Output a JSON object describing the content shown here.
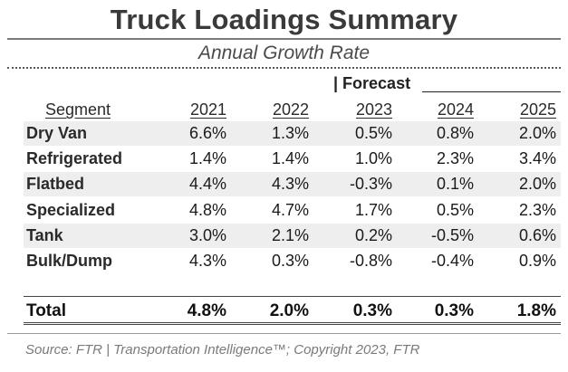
{
  "title": "Truck Loadings Summary",
  "subtitle": "Annual Growth Rate",
  "forecast_label": "| Forecast",
  "source": "Source: FTR | Transportation Intelligence™; Copyright 2023, FTR",
  "chart_data": {
    "type": "table",
    "title": "Truck Loadings Summary",
    "subtitle": "Annual Growth Rate",
    "columns": [
      "Segment",
      "2021",
      "2022",
      "2023",
      "2024",
      "2025"
    ],
    "rows": [
      {
        "segment": "Dry Van",
        "values": [
          "6.6%",
          "1.3%",
          "0.5%",
          "0.8%",
          "2.0%"
        ]
      },
      {
        "segment": "Refrigerated",
        "values": [
          "1.4%",
          "1.4%",
          "1.0%",
          "2.3%",
          "3.4%"
        ]
      },
      {
        "segment": "Flatbed",
        "values": [
          "4.4%",
          "4.3%",
          "-0.3%",
          "0.1%",
          "2.0%"
        ]
      },
      {
        "segment": "Specialized",
        "values": [
          "4.8%",
          "4.7%",
          "1.7%",
          "0.5%",
          "2.3%"
        ]
      },
      {
        "segment": "Tank",
        "values": [
          "3.0%",
          "2.1%",
          "0.2%",
          "-0.5%",
          "0.6%"
        ]
      },
      {
        "segment": "Bulk/Dump",
        "values": [
          "4.3%",
          "0.3%",
          "-0.8%",
          "-0.4%",
          "0.9%"
        ]
      }
    ],
    "total": {
      "segment": "Total",
      "values": [
        "4.8%",
        "2.0%",
        "0.3%",
        "0.3%",
        "1.8%"
      ]
    }
  }
}
